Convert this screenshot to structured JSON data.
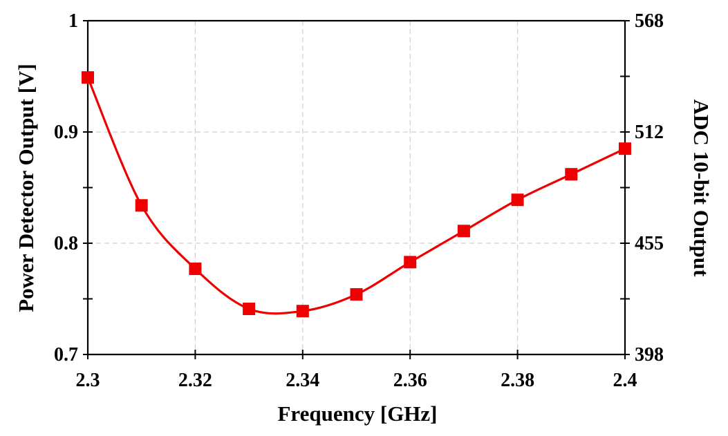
{
  "chart_data": {
    "type": "line",
    "xlabel": "Frequency [GHz]",
    "ylabel": "Power Detector Output [V]",
    "y2label": "ADC 10-bit Output",
    "xlim": [
      2.3,
      2.4
    ],
    "ylim": [
      0.7,
      1.0
    ],
    "y2lim": [
      398,
      568
    ],
    "x_ticks": [
      "2.3",
      "2.32",
      "2.34",
      "2.36",
      "2.38",
      "2.4"
    ],
    "y_ticks": [
      "0.7",
      "0.8",
      "0.9",
      "1"
    ],
    "y2_ticks": [
      "398",
      "455",
      "512",
      "568"
    ],
    "grid": true,
    "legend": "none",
    "series": [
      {
        "color": "#ee0000",
        "marker": "square",
        "x": [
          2.3,
          2.31,
          2.32,
          2.33,
          2.34,
          2.35,
          2.36,
          2.37,
          2.38,
          2.39,
          2.4
        ],
        "y": [
          0.949,
          0.834,
          0.777,
          0.741,
          0.739,
          0.754,
          0.783,
          0.811,
          0.839,
          0.862,
          0.885
        ]
      }
    ]
  }
}
